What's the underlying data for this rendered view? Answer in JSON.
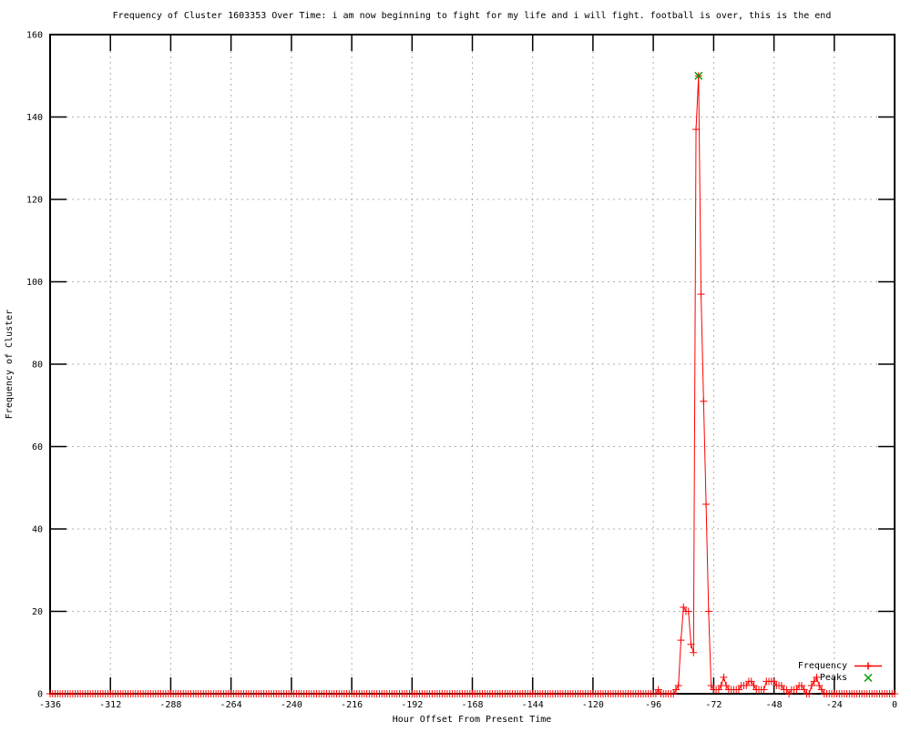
{
  "chart_data": {
    "type": "line",
    "style": "gnuplot-linespoints",
    "title": "Frequency of Cluster 1603353 Over Time: i am now beginning to fight for my life and i will fight. football is over, this is the end",
    "xlabel": "Hour Offset From Present Time",
    "ylabel": "Frequency of Cluster",
    "xlim": [
      -336,
      0
    ],
    "ylim": [
      0,
      160
    ],
    "xticks": [
      -336,
      -312,
      -288,
      -264,
      -240,
      -216,
      -192,
      -168,
      -144,
      -120,
      -96,
      -72,
      -48,
      -24,
      0
    ],
    "yticks": [
      0,
      20,
      40,
      60,
      80,
      100,
      120,
      140,
      160
    ],
    "grid": true,
    "legend_position": "bottom-right-inside",
    "series": [
      {
        "name": "Frequency",
        "color": "#ff0000",
        "marker": "plus",
        "line": true,
        "x_start": -336,
        "x_step": 1,
        "default_value": 0,
        "nonzero_points": [
          [
            -94,
            1
          ],
          [
            -87,
            1
          ],
          [
            -86,
            2
          ],
          [
            -85,
            13
          ],
          [
            -84,
            21
          ],
          [
            -83,
            20
          ],
          [
            -82,
            20
          ],
          [
            -81,
            12
          ],
          [
            -80,
            10
          ],
          [
            -79,
            137
          ],
          [
            -78,
            150
          ],
          [
            -77,
            97
          ],
          [
            -76,
            71
          ],
          [
            -75,
            46
          ],
          [
            -74,
            20
          ],
          [
            -73,
            2
          ],
          [
            -72,
            1
          ],
          [
            -71,
            1
          ],
          [
            -70,
            1
          ],
          [
            -69,
            2
          ],
          [
            -68,
            4
          ],
          [
            -67,
            2
          ],
          [
            -66,
            1
          ],
          [
            -65,
            1
          ],
          [
            -64,
            1
          ],
          [
            -63,
            1
          ],
          [
            -62,
            1
          ],
          [
            -61,
            2
          ],
          [
            -60,
            2
          ],
          [
            -59,
            2
          ],
          [
            -58,
            3
          ],
          [
            -57,
            3
          ],
          [
            -56,
            2
          ],
          [
            -55,
            1
          ],
          [
            -54,
            1
          ],
          [
            -53,
            1
          ],
          [
            -52,
            1
          ],
          [
            -51,
            3
          ],
          [
            -50,
            3
          ],
          [
            -49,
            3
          ],
          [
            -48,
            3
          ],
          [
            -47,
            2
          ],
          [
            -46,
            2
          ],
          [
            -45,
            2
          ],
          [
            -44,
            1
          ],
          [
            -43,
            1
          ],
          [
            -41,
            1
          ],
          [
            -40,
            1
          ],
          [
            -39,
            1
          ],
          [
            -38,
            2
          ],
          [
            -37,
            2
          ],
          [
            -36,
            1
          ],
          [
            -33,
            2
          ],
          [
            -32,
            3
          ],
          [
            -31,
            4
          ],
          [
            -30,
            2
          ],
          [
            -29,
            1
          ]
        ]
      },
      {
        "name": "Peaks",
        "color": "#00a000",
        "marker": "cross",
        "line": false,
        "points": [
          [
            -78,
            150
          ]
        ]
      }
    ]
  },
  "legend": {
    "items": [
      {
        "label": "Frequency",
        "marker": "plus-with-line",
        "color": "#ff0000"
      },
      {
        "label": "Peaks",
        "marker": "cross",
        "color": "#00a000"
      }
    ]
  },
  "colors": {
    "background": "#ffffff",
    "border": "#000000",
    "grid": "#b0b0b0",
    "frequency_series": "#ff0000",
    "peaks_series": "#00a000"
  }
}
